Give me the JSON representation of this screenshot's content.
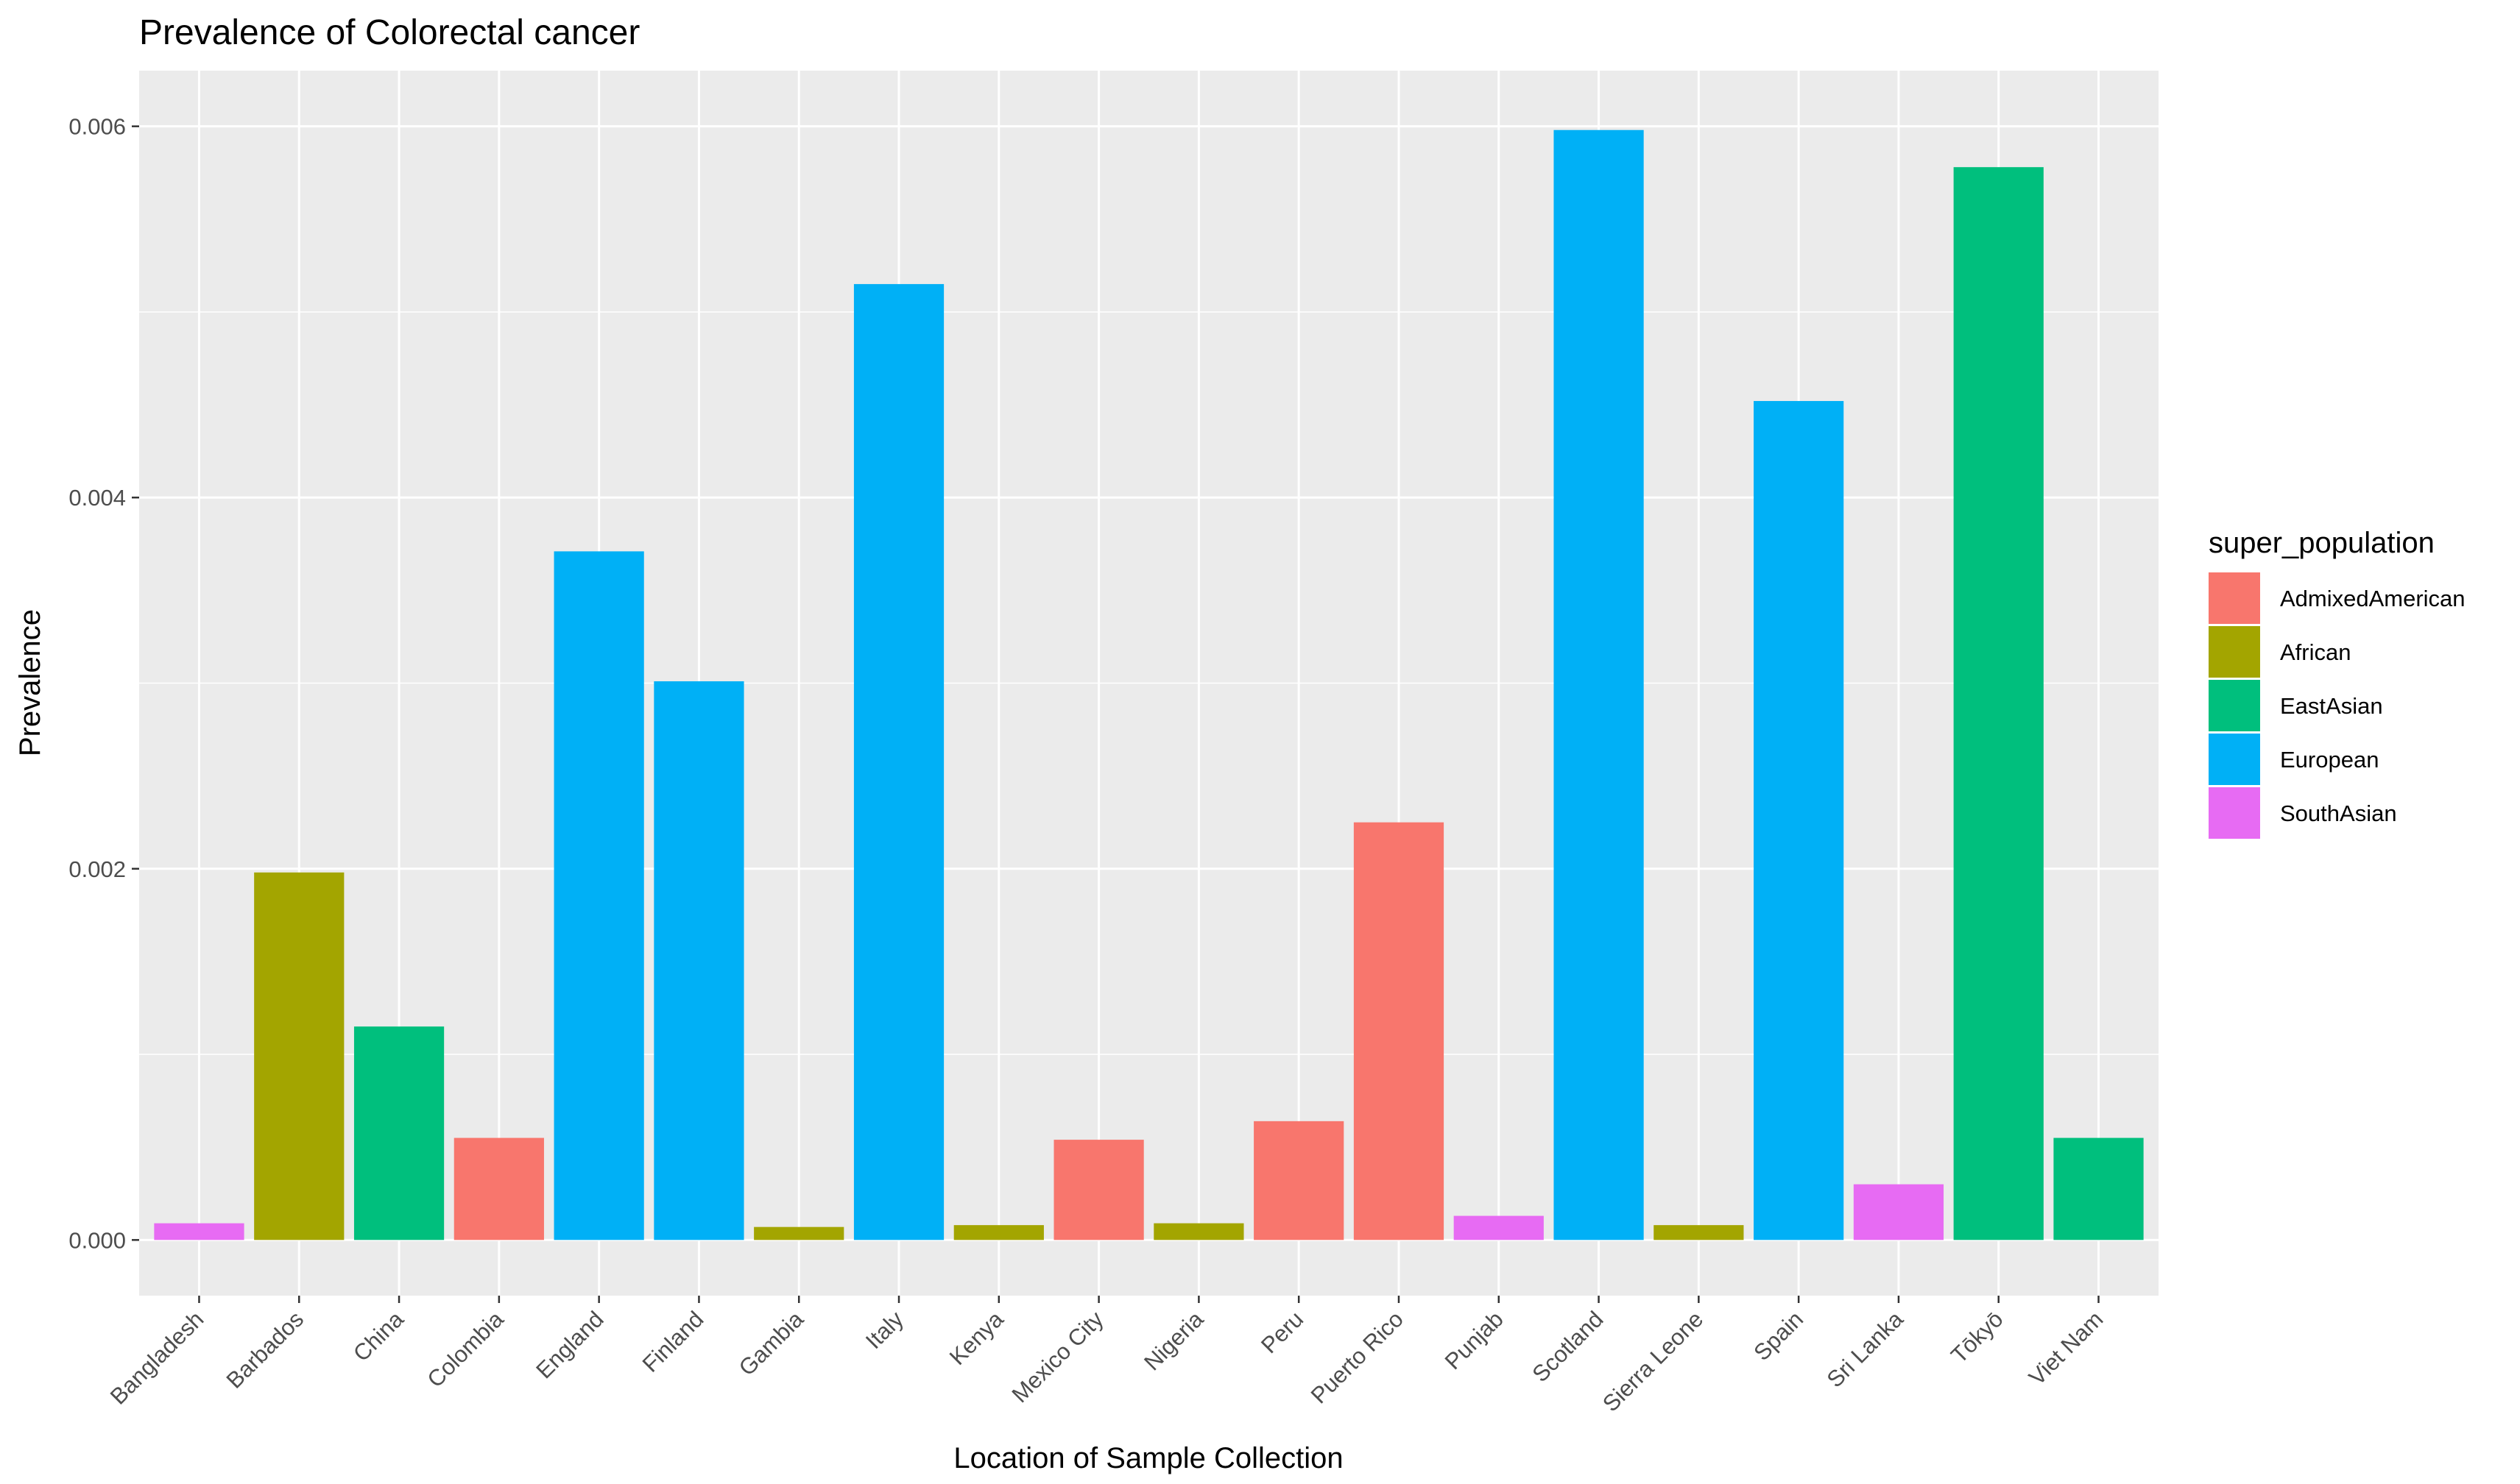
{
  "chart_data": {
    "type": "bar",
    "title": "Prevalence of Colorectal cancer",
    "xlabel": "Location of Sample Collection",
    "ylabel": "Prevalence",
    "ylim": [
      -0.0003,
      0.0063
    ],
    "yticks": [
      0.0,
      0.002,
      0.004,
      0.006
    ],
    "ytick_labels": [
      "0.000",
      "0.002",
      "0.004",
      "0.006"
    ],
    "grid": true,
    "legend": {
      "title": "super_population",
      "position": "right",
      "entries": [
        {
          "name": "AdmixedAmerican",
          "color": "#F8766D"
        },
        {
          "name": "African",
          "color": "#A3A500"
        },
        {
          "name": "EastAsian",
          "color": "#00BF7D"
        },
        {
          "name": "European",
          "color": "#00B0F6"
        },
        {
          "name": "SouthAsian",
          "color": "#E76BF3"
        }
      ]
    },
    "categories": [
      "Bangladesh",
      "Barbados",
      "China",
      "Colombia",
      "England",
      "Finland",
      "Gambia",
      "Italy",
      "Kenya",
      "Mexico City",
      "Nigeria",
      "Peru",
      "Puerto Rico",
      "Punjab",
      "Scotland",
      "Sierra Leone",
      "Spain",
      "Sri Lanka",
      "Tōkyō",
      "Viet Nam"
    ],
    "values": [
      9e-05,
      0.00198,
      0.00115,
      0.00055,
      0.00371,
      0.00301,
      7e-05,
      0.00515,
      8e-05,
      0.00054,
      9e-05,
      0.00064,
      0.00225,
      0.00013,
      0.00598,
      8e-05,
      0.00452,
      0.0003,
      0.00578,
      0.00055
    ],
    "groups": [
      "SouthAsian",
      "African",
      "EastAsian",
      "AdmixedAmerican",
      "European",
      "European",
      "African",
      "European",
      "African",
      "AdmixedAmerican",
      "African",
      "AdmixedAmerican",
      "AdmixedAmerican",
      "SouthAsian",
      "European",
      "African",
      "European",
      "SouthAsian",
      "EastAsian",
      "EastAsian"
    ]
  }
}
